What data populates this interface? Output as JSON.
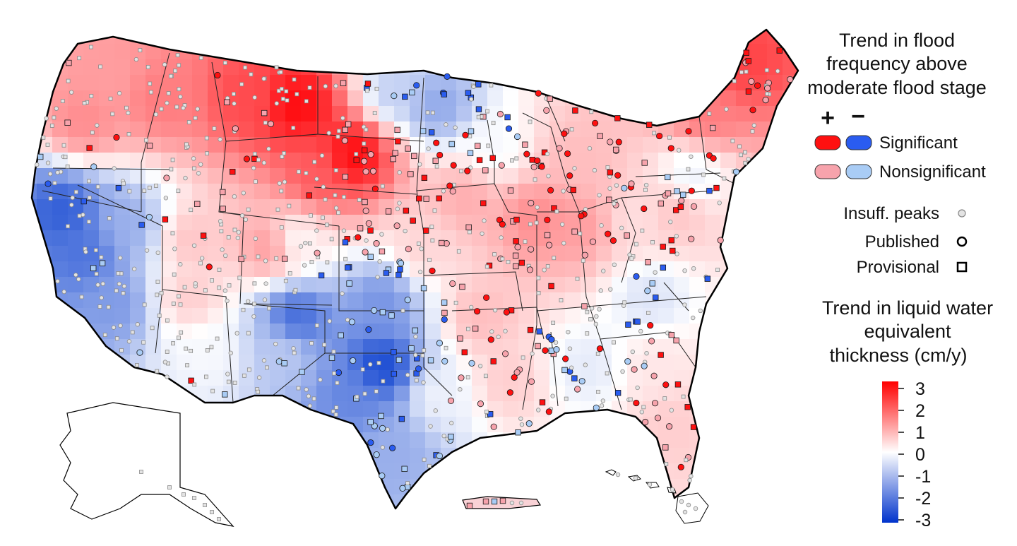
{
  "legend": {
    "flood_trend_title": [
      "Trend in flood",
      "frequency above",
      "moderate flood stage"
    ],
    "plus_symbol": "+",
    "minus_symbol": "−",
    "significant_label": "Significant",
    "nonsignificant_label": "Nonsignificant",
    "insufficient_label": "Insuff. peaks",
    "published_label": "Published",
    "provisional_label": "Provisional",
    "water_trend_title": [
      "Trend in liquid water",
      "equivalent",
      "thickness (cm/y)"
    ],
    "colorbar_ticks": [
      "3",
      "2",
      "1",
      "0",
      "-1",
      "-2",
      "-3"
    ]
  },
  "colors": {
    "sig_positive": "#ff1010",
    "sig_negative": "#2a5cf0",
    "nonsig_positive": "#f7a3ac",
    "nonsig_negative": "#a9ccf5",
    "insufficient": "#e3e3e3",
    "colorbar_top": "#ff0000",
    "colorbar_mid": "#ffffff",
    "colorbar_bottom": "#0033cc"
  }
}
